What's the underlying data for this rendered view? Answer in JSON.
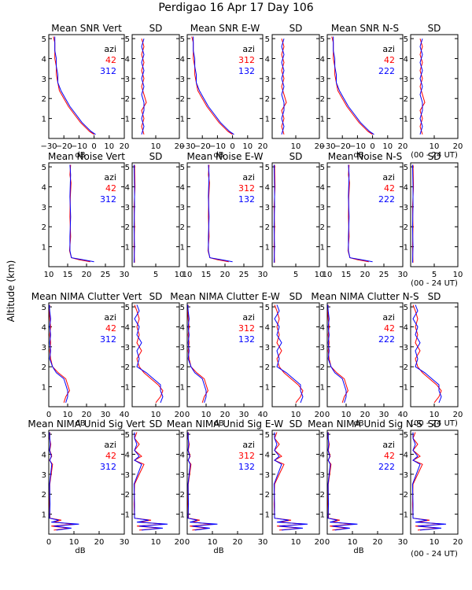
{
  "title": "Perdigao  16 Apr 17 Day 106",
  "ylabel": "Altitude (km)",
  "time_label": "(00 - 24 UT)",
  "colors": {
    "red": "#ff0000",
    "blue": "#0000ff",
    "black": "#000000"
  },
  "legend_header": "azi",
  "chart_data": {
    "type": "line",
    "note": "Lidar/radar profile panels; values approximated from the figure.",
    "rows": [
      {
        "name": "snr",
        "mean_titles": [
          "Mean SNR Vert",
          "Mean SNR E-W",
          "Mean SNR N-S"
        ],
        "sd_title": "SD",
        "xlabel": "dB",
        "mean_xlim": [
          -30,
          20
        ],
        "mean_ticks": [
          "−30",
          "−20",
          "−10",
          "0",
          "10",
          "20"
        ],
        "sd_xlim": [
          0,
          20
        ],
        "sd_ticks": [
          "10",
          "20"
        ],
        "legends": [
          [
            "42",
            "312"
          ],
          [
            "312",
            "132"
          ],
          [
            "42",
            "222"
          ]
        ],
        "mean_profile_red": [
          [
            0.2,
            0
          ],
          [
            0.35,
            -3
          ],
          [
            0.5,
            -5
          ],
          [
            0.8,
            -9
          ],
          [
            1.2,
            -13
          ],
          [
            1.6,
            -17
          ],
          [
            2.0,
            -20
          ],
          [
            2.4,
            -23
          ],
          [
            2.8,
            -24
          ],
          [
            3.2,
            -25
          ],
          [
            3.6,
            -25
          ],
          [
            4.0,
            -26
          ],
          [
            4.4,
            -26
          ],
          [
            4.8,
            -26
          ],
          [
            5.1,
            -27
          ]
        ],
        "mean_profile_blue": [
          [
            0.2,
            1
          ],
          [
            0.35,
            -2
          ],
          [
            0.5,
            -4
          ],
          [
            0.8,
            -8
          ],
          [
            1.2,
            -12
          ],
          [
            1.6,
            -16
          ],
          [
            2.0,
            -19
          ],
          [
            2.4,
            -22
          ],
          [
            2.8,
            -24
          ],
          [
            3.2,
            -24
          ],
          [
            3.6,
            -25
          ],
          [
            4.0,
            -25
          ],
          [
            4.4,
            -26
          ],
          [
            4.8,
            -26
          ],
          [
            5.1,
            -26
          ]
        ],
        "sd_profile_red": [
          [
            0.2,
            5
          ],
          [
            0.6,
            4
          ],
          [
            1.0,
            5
          ],
          [
            1.4,
            4
          ],
          [
            1.8,
            6
          ],
          [
            2.2,
            5
          ],
          [
            2.6,
            4
          ],
          [
            3.0,
            5
          ],
          [
            3.4,
            4
          ],
          [
            3.8,
            5
          ],
          [
            4.2,
            4
          ],
          [
            4.6,
            5
          ],
          [
            5.0,
            4
          ]
        ],
        "sd_profile_blue": [
          [
            0.2,
            4
          ],
          [
            0.6,
            5
          ],
          [
            1.0,
            4
          ],
          [
            1.4,
            5
          ],
          [
            1.8,
            5
          ],
          [
            2.2,
            4
          ],
          [
            2.6,
            5
          ],
          [
            3.0,
            4
          ],
          [
            3.4,
            5
          ],
          [
            3.8,
            4
          ],
          [
            4.2,
            5
          ],
          [
            4.6,
            4
          ],
          [
            5.0,
            5
          ]
        ]
      },
      {
        "name": "noise",
        "mean_titles": [
          "Mean  Noise Vert",
          "Mean  Noise E-W",
          "Mean  Noise N-S"
        ],
        "sd_title": "SD",
        "xlabel": "",
        "mean_xlim": [
          10,
          30
        ],
        "mean_ticks": [
          "10",
          "15",
          "20",
          "25",
          "30"
        ],
        "sd_xlim": [
          0,
          10
        ],
        "sd_ticks": [
          "5",
          "10"
        ],
        "legends": [
          [
            "42",
            "312"
          ],
          [
            "312",
            "132"
          ],
          [
            "42",
            "222"
          ]
        ],
        "mean_profile_red": [
          [
            0.25,
            21
          ],
          [
            0.35,
            18
          ],
          [
            0.45,
            16
          ],
          [
            0.8,
            15.5
          ],
          [
            1.5,
            15.8
          ],
          [
            2.5,
            15.6
          ],
          [
            3.5,
            15.7
          ],
          [
            4.2,
            15.9
          ],
          [
            4.6,
            15.6
          ],
          [
            5.1,
            15.8
          ]
        ],
        "mean_profile_blue": [
          [
            0.25,
            22
          ],
          [
            0.35,
            19
          ],
          [
            0.45,
            16
          ],
          [
            0.8,
            15.6
          ],
          [
            1.5,
            15.6
          ],
          [
            2.5,
            15.8
          ],
          [
            3.5,
            15.6
          ],
          [
            4.2,
            15.7
          ],
          [
            4.6,
            15.8
          ],
          [
            5.1,
            15.6
          ]
        ],
        "sd_profile_red": [
          [
            0.2,
            0.5
          ],
          [
            1.0,
            0.4
          ],
          [
            2.0,
            0.5
          ],
          [
            3.0,
            0.4
          ],
          [
            4.0,
            0.6
          ],
          [
            5.1,
            0.5
          ]
        ],
        "sd_profile_blue": [
          [
            0.2,
            0.4
          ],
          [
            1.0,
            0.5
          ],
          [
            2.0,
            0.4
          ],
          [
            3.0,
            0.5
          ],
          [
            4.0,
            0.5
          ],
          [
            5.1,
            0.4
          ]
        ]
      },
      {
        "name": "clutter",
        "mean_titles": [
          "Mean  NIMA  Clutter Vert",
          "Mean  NIMA  Clutter E-W",
          "Mean  NIMA  Clutter N-S"
        ],
        "sd_title": "SD",
        "xlabel": "dB",
        "mean_xlim": [
          0,
          40
        ],
        "mean_ticks": [
          "0",
          "10",
          "20",
          "30",
          "40"
        ],
        "sd_xlim": [
          0,
          20
        ],
        "sd_ticks": [
          "10",
          "20"
        ],
        "legends": [
          [
            "42",
            "312"
          ],
          [
            "312",
            "132"
          ],
          [
            "42",
            "222"
          ]
        ],
        "mean_profile_red": [
          [
            0.2,
            8
          ],
          [
            0.5,
            9
          ],
          [
            0.8,
            11
          ],
          [
            1.1,
            10
          ],
          [
            1.4,
            9
          ],
          [
            1.7,
            5
          ],
          [
            2.0,
            2
          ],
          [
            2.4,
            1
          ],
          [
            2.8,
            0.5
          ],
          [
            3.2,
            1
          ],
          [
            3.6,
            0.5
          ],
          [
            4.0,
            1
          ],
          [
            4.4,
            0.5
          ],
          [
            4.8,
            0.3
          ],
          [
            5.1,
            0.5
          ]
        ],
        "mean_profile_blue": [
          [
            0.2,
            9
          ],
          [
            0.5,
            10
          ],
          [
            0.8,
            10
          ],
          [
            1.1,
            9
          ],
          [
            1.4,
            8
          ],
          [
            1.7,
            4
          ],
          [
            2.0,
            2
          ],
          [
            2.4,
            0.5
          ],
          [
            2.8,
            1
          ],
          [
            3.2,
            0.5
          ],
          [
            3.6,
            1
          ],
          [
            4.0,
            0.5
          ],
          [
            4.4,
            1
          ],
          [
            4.8,
            0.5
          ],
          [
            5.1,
            0.3
          ]
        ],
        "sd_profile_red": [
          [
            0.2,
            10
          ],
          [
            0.5,
            12
          ],
          [
            0.8,
            13
          ],
          [
            1.1,
            11
          ],
          [
            1.4,
            8
          ],
          [
            1.7,
            5
          ],
          [
            2.0,
            3
          ],
          [
            2.4,
            2
          ],
          [
            2.8,
            4
          ],
          [
            3.2,
            2
          ],
          [
            3.6,
            3
          ],
          [
            4.0,
            2
          ],
          [
            4.4,
            3
          ],
          [
            4.8,
            2
          ],
          [
            5.1,
            1
          ]
        ],
        "sd_profile_blue": [
          [
            0.2,
            12
          ],
          [
            0.5,
            13
          ],
          [
            0.8,
            12
          ],
          [
            1.1,
            12
          ],
          [
            1.4,
            9
          ],
          [
            1.7,
            6
          ],
          [
            2.0,
            2
          ],
          [
            2.4,
            3
          ],
          [
            2.8,
            2
          ],
          [
            3.2,
            4
          ],
          [
            3.6,
            2
          ],
          [
            4.0,
            3
          ],
          [
            4.4,
            1
          ],
          [
            4.8,
            3
          ],
          [
            5.1,
            2
          ]
        ]
      },
      {
        "name": "unid",
        "mean_titles": [
          "Mean  NIMA  Unid Sig  Vert",
          "Mean  NIMA  Unid Sig  E-W",
          "Mean  NIMA  Unid Sig  N-S"
        ],
        "sd_title": "SD",
        "xlabel": "dB",
        "mean_xlim": [
          0,
          30
        ],
        "mean_ticks": [
          "0",
          "10",
          "20",
          "30"
        ],
        "sd_xlim": [
          0,
          20
        ],
        "sd_ticks": [
          "10",
          "20"
        ],
        "legends": [
          [
            "42",
            "312"
          ],
          [
            "312",
            "132"
          ],
          [
            "42",
            "222"
          ]
        ],
        "mean_profile_red": [
          [
            0.2,
            2
          ],
          [
            0.3,
            8
          ],
          [
            0.4,
            1
          ],
          [
            0.5,
            10
          ],
          [
            0.6,
            2
          ],
          [
            0.7,
            5
          ],
          [
            0.8,
            0.5
          ],
          [
            1.5,
            0.3
          ],
          [
            2.5,
            0.4
          ],
          [
            3.5,
            1.5
          ],
          [
            3.7,
            0.3
          ],
          [
            3.9,
            1.2
          ],
          [
            4.2,
            0.4
          ],
          [
            4.5,
            0.8
          ],
          [
            4.8,
            0.3
          ],
          [
            5.1,
            0.5
          ]
        ],
        "mean_profile_blue": [
          [
            0.2,
            3
          ],
          [
            0.3,
            9
          ],
          [
            0.4,
            2
          ],
          [
            0.5,
            12
          ],
          [
            0.6,
            1
          ],
          [
            0.7,
            4
          ],
          [
            0.8,
            0.3
          ],
          [
            1.5,
            0.5
          ],
          [
            2.5,
            0.3
          ],
          [
            3.5,
            1.2
          ],
          [
            3.7,
            0.4
          ],
          [
            3.9,
            1.0
          ],
          [
            4.2,
            0.3
          ],
          [
            4.5,
            0.6
          ],
          [
            4.8,
            0.4
          ],
          [
            5.1,
            0.3
          ]
        ],
        "sd_profile_red": [
          [
            0.2,
            3
          ],
          [
            0.3,
            12
          ],
          [
            0.4,
            2
          ],
          [
            0.5,
            14
          ],
          [
            0.6,
            3
          ],
          [
            0.7,
            8
          ],
          [
            0.8,
            1
          ],
          [
            1.5,
            0.8
          ],
          [
            2.5,
            1.0
          ],
          [
            3.5,
            5
          ],
          [
            3.7,
            1
          ],
          [
            3.9,
            4
          ],
          [
            4.2,
            1
          ],
          [
            4.5,
            3
          ],
          [
            4.8,
            1
          ],
          [
            5.1,
            2
          ]
        ],
        "sd_profile_blue": [
          [
            0.2,
            4
          ],
          [
            0.3,
            13
          ],
          [
            0.4,
            3
          ],
          [
            0.5,
            15
          ],
          [
            0.6,
            2
          ],
          [
            0.7,
            7
          ],
          [
            0.8,
            1
          ],
          [
            1.5,
            1.0
          ],
          [
            2.5,
            0.8
          ],
          [
            3.5,
            4
          ],
          [
            3.7,
            1
          ],
          [
            3.9,
            3
          ],
          [
            4.2,
            1
          ],
          [
            4.5,
            2
          ],
          [
            4.8,
            1
          ],
          [
            5.1,
            1
          ]
        ]
      }
    ],
    "ylim": [
      0,
      5.2
    ],
    "yticks": [
      1,
      2,
      3,
      4,
      5
    ]
  }
}
